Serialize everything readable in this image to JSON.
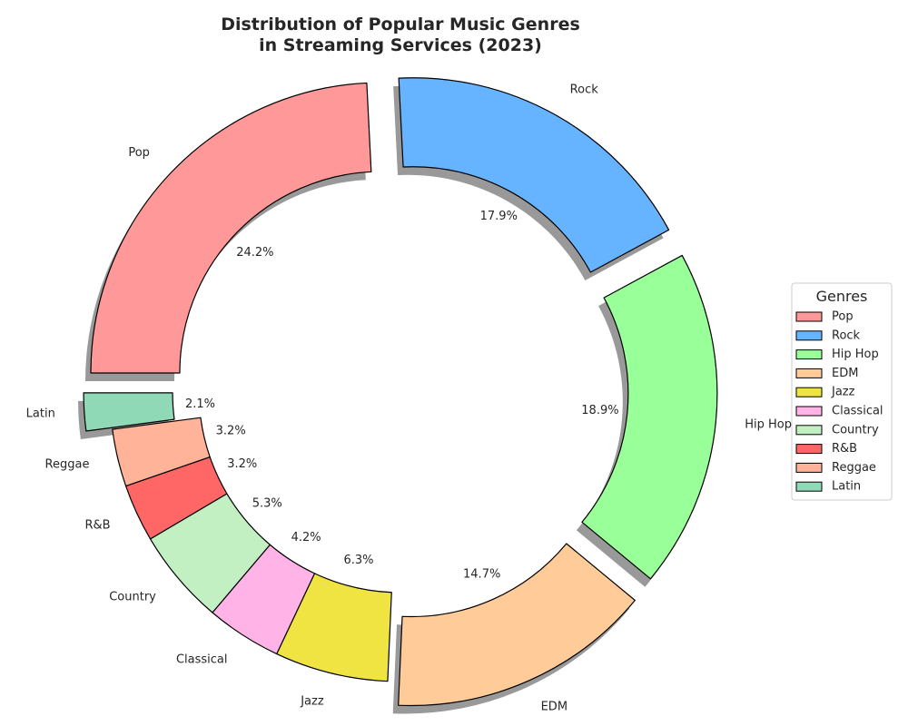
{
  "chart_data": {
    "type": "pie",
    "variant": "donut",
    "title_lines": [
      "Distribution of Popular Music Genres",
      "in Streaming Services (2023)"
    ],
    "categories": [
      "Pop",
      "Rock",
      "Hip Hop",
      "EDM",
      "Jazz",
      "Classical",
      "Country",
      "R&B",
      "Reggae",
      "Latin"
    ],
    "values": [
      24.2,
      17.9,
      18.9,
      14.7,
      6.3,
      4.2,
      5.3,
      3.2,
      3.2,
      2.1
    ],
    "value_labels": [
      "24.2%",
      "17.9%",
      "18.9%",
      "14.7%",
      "6.3%",
      "4.2%",
      "5.3%",
      "3.2%",
      "3.2%",
      "2.1%"
    ],
    "colors": [
      "#FF9999",
      "#66B3FF",
      "#99FF99",
      "#FFCC99",
      "#F0E442",
      "#FFB3E6",
      "#C2F0C2",
      "#FF6666",
      "#FFB399",
      "#8FD9B6"
    ],
    "exploded": [
      true,
      true,
      true,
      true,
      false,
      false,
      false,
      false,
      false,
      true
    ],
    "shadow": true,
    "legend": {
      "title": "Genres",
      "placement": "right"
    }
  }
}
